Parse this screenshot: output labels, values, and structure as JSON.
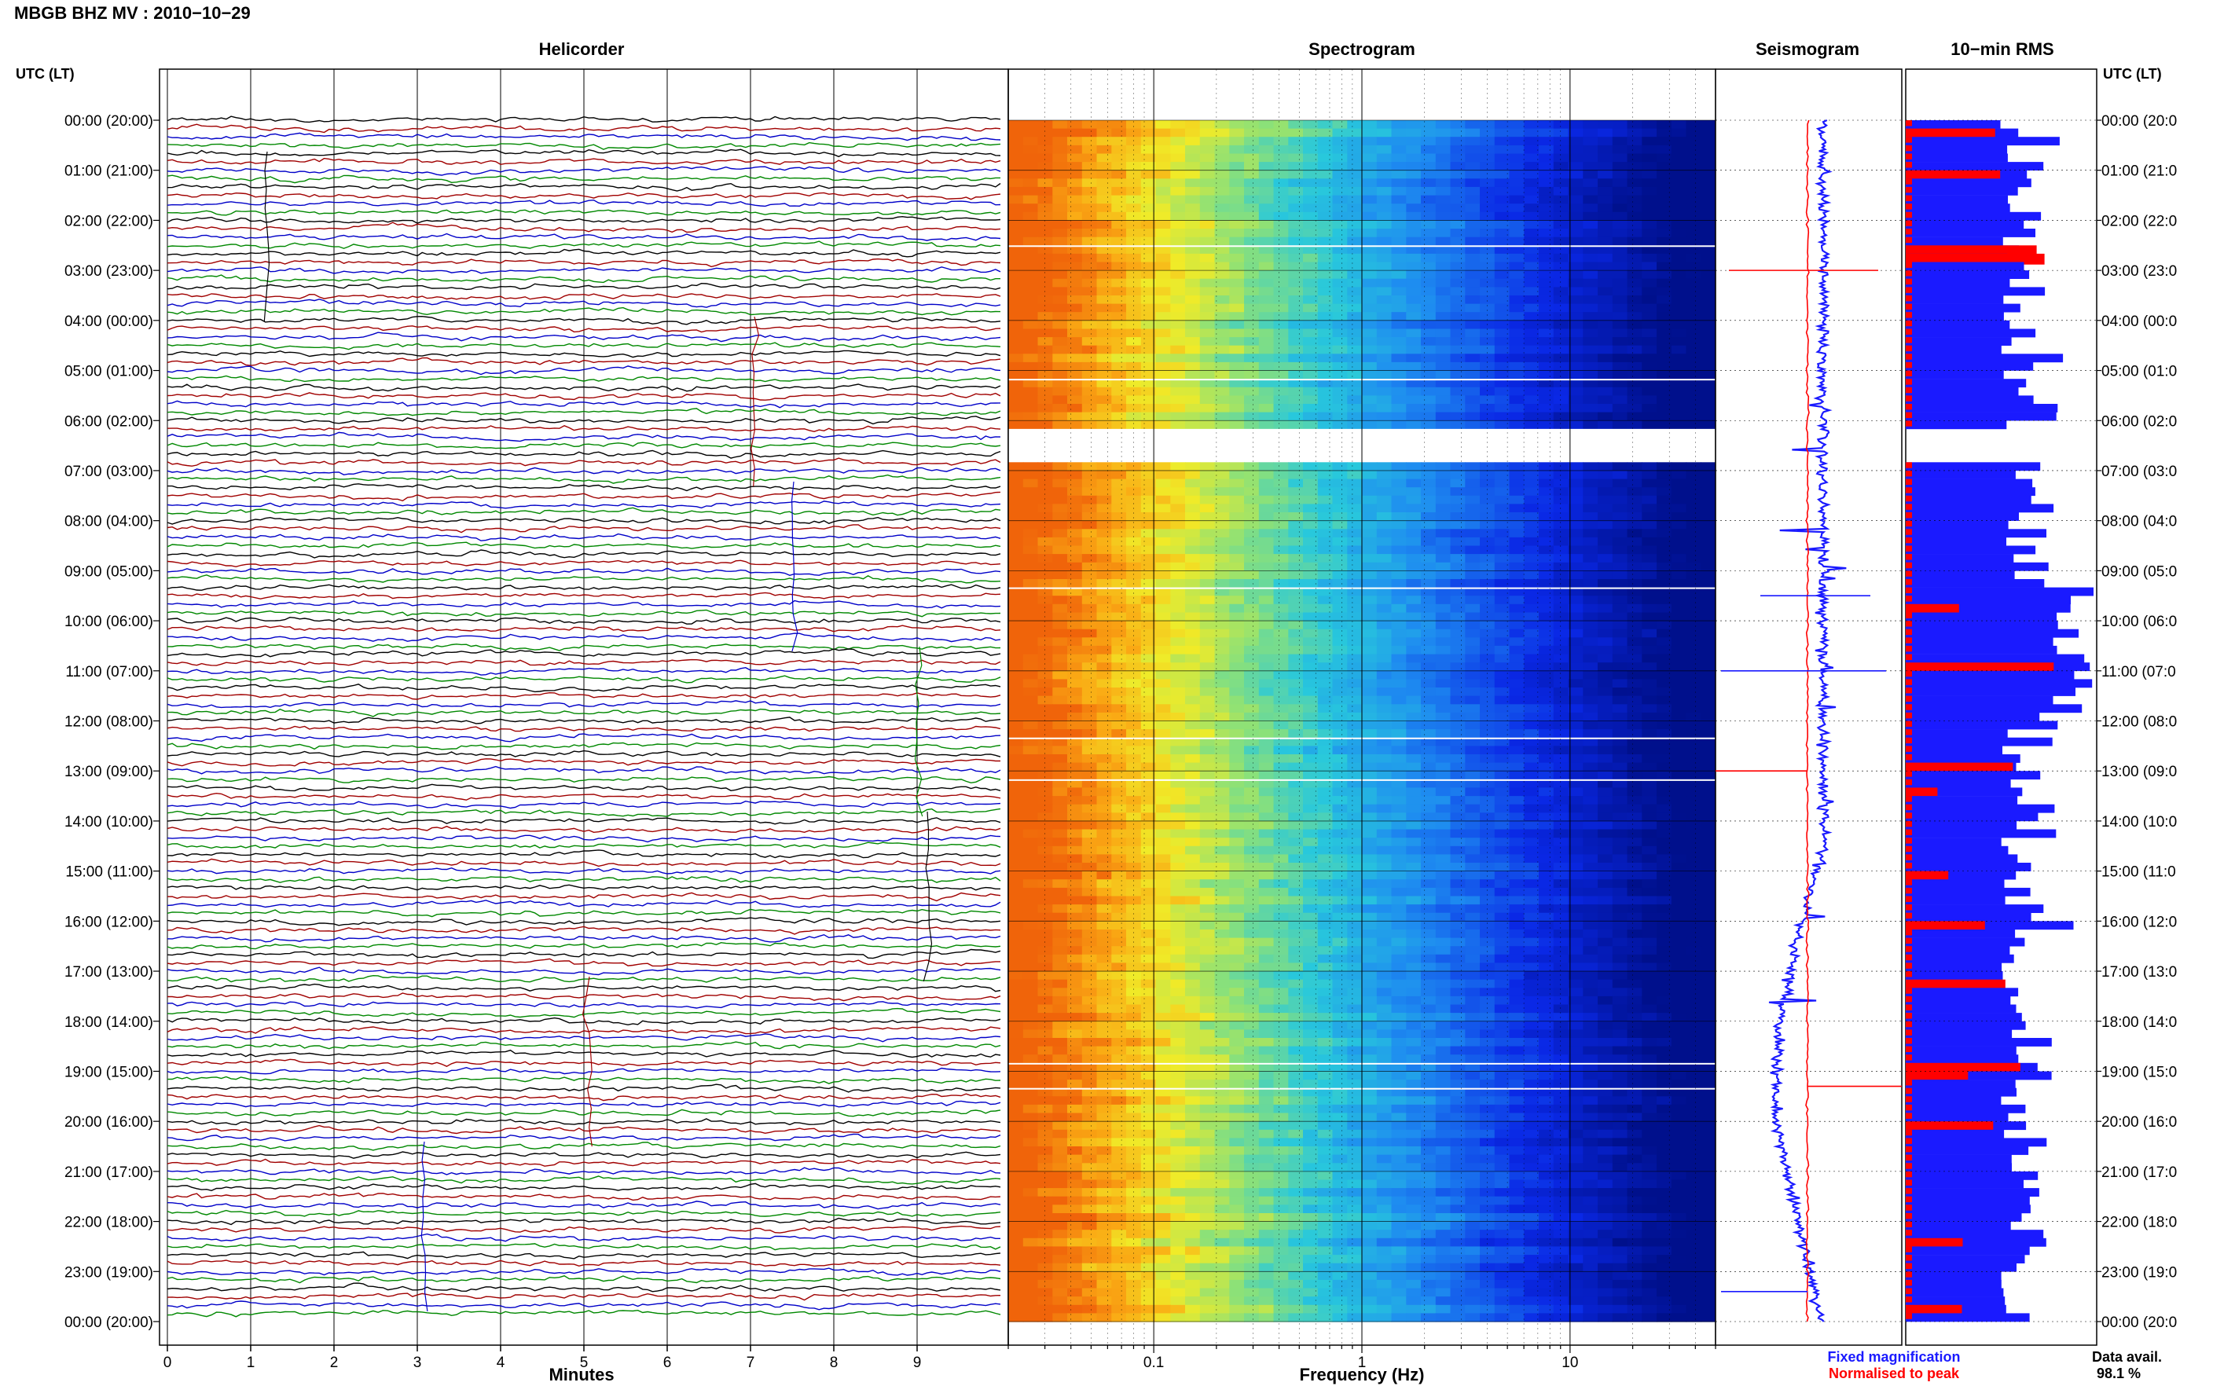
{
  "title": "MBGB BHZ MV : 2010−10−29",
  "time_axis_label": "UTC (LT)",
  "time_ticks": [
    "00:00 (20:00)",
    "01:00 (21:00)",
    "02:00 (22:00)",
    "03:00 (23:00)",
    "04:00 (00:00)",
    "05:00 (01:00)",
    "06:00 (02:00)",
    "07:00 (03:00)",
    "08:00 (04:00)",
    "09:00 (05:00)",
    "10:00 (06:00)",
    "11:00 (07:00)",
    "12:00 (08:00)",
    "13:00 (09:00)",
    "14:00 (10:00)",
    "15:00 (11:00)",
    "16:00 (12:00)",
    "17:00 (13:00)",
    "18:00 (14:00)",
    "19:00 (15:00)",
    "20:00 (16:00)",
    "21:00 (17:00)",
    "22:00 (18:00)",
    "23:00 (19:00)",
    "00:00 (20:00)"
  ],
  "time_ticks_right": [
    "00:00 (20:0",
    "01:00 (21:0",
    "02:00 (22:0",
    "03:00 (23:0",
    "04:00 (00:0",
    "05:00 (01:0",
    "06:00 (02:0",
    "07:00 (03:0",
    "08:00 (04:0",
    "09:00 (05:0",
    "10:00 (06:0",
    "11:00 (07:0",
    "12:00 (08:0",
    "13:00 (09:0",
    "14:00 (10:0",
    "15:00 (11:0",
    "16:00 (12:0",
    "17:00 (13:0",
    "18:00 (14:0",
    "19:00 (15:0",
    "20:00 (16:0",
    "21:00 (17:0",
    "22:00 (18:0",
    "23:00 (19:0",
    "00:00 (20:0"
  ],
  "panels": {
    "helicorder": "Helicorder",
    "spectrogram": "Spectrogram",
    "seismogram": "Seismogram",
    "rms": "10−min RMS"
  },
  "colors": {
    "trace_colors": [
      "#000000",
      "#a00000",
      "#0000c8",
      "#008800"
    ],
    "seismo_fixed": "#1a1aff",
    "seismo_norm": "#ff0000",
    "rms_bar": "#1a1aff",
    "rms_event": "#ff0000"
  },
  "chart_data": [
    {
      "type": "line",
      "name": "helicorder",
      "title": "Helicorder",
      "xlabel": "Minutes",
      "x_ticks": [
        "0",
        "1",
        "2",
        "3",
        "4",
        "5",
        "6",
        "7",
        "8",
        "9"
      ],
      "xlim": [
        0,
        10
      ],
      "trace_count": 144,
      "trace_minutes": 10,
      "grid": true
    },
    {
      "type": "heatmap",
      "name": "spectrogram",
      "title": "Spectrogram",
      "xlabel": "Frequency (Hz)",
      "x_scale": "log",
      "x_ticks": [
        "0.1",
        "1",
        "10"
      ],
      "xlim": [
        0.02,
        50
      ],
      "gap_hours_utc": [
        [
          6.05,
          6.75
        ]
      ],
      "hour_gridlines": true
    },
    {
      "type": "line",
      "name": "seismogram",
      "title": "Seismogram",
      "legend": [
        "Fixed magnification",
        "Normalised to peak"
      ],
      "legend_placement": "bottom"
    },
    {
      "type": "bar",
      "name": "rms",
      "title": "10−min RMS",
      "orientation": "horizontal",
      "bins": 144,
      "event_bins_utc_hour": [
        0.1,
        1.0,
        2.5,
        2.65,
        9.6,
        10.9,
        12.85,
        13.4,
        14.95,
        16.0,
        17.2,
        18.9,
        19.0,
        20.0,
        22.3,
        23.65
      ],
      "data_availability_label": "Data avail.",
      "data_availability": "98.1 %"
    }
  ]
}
